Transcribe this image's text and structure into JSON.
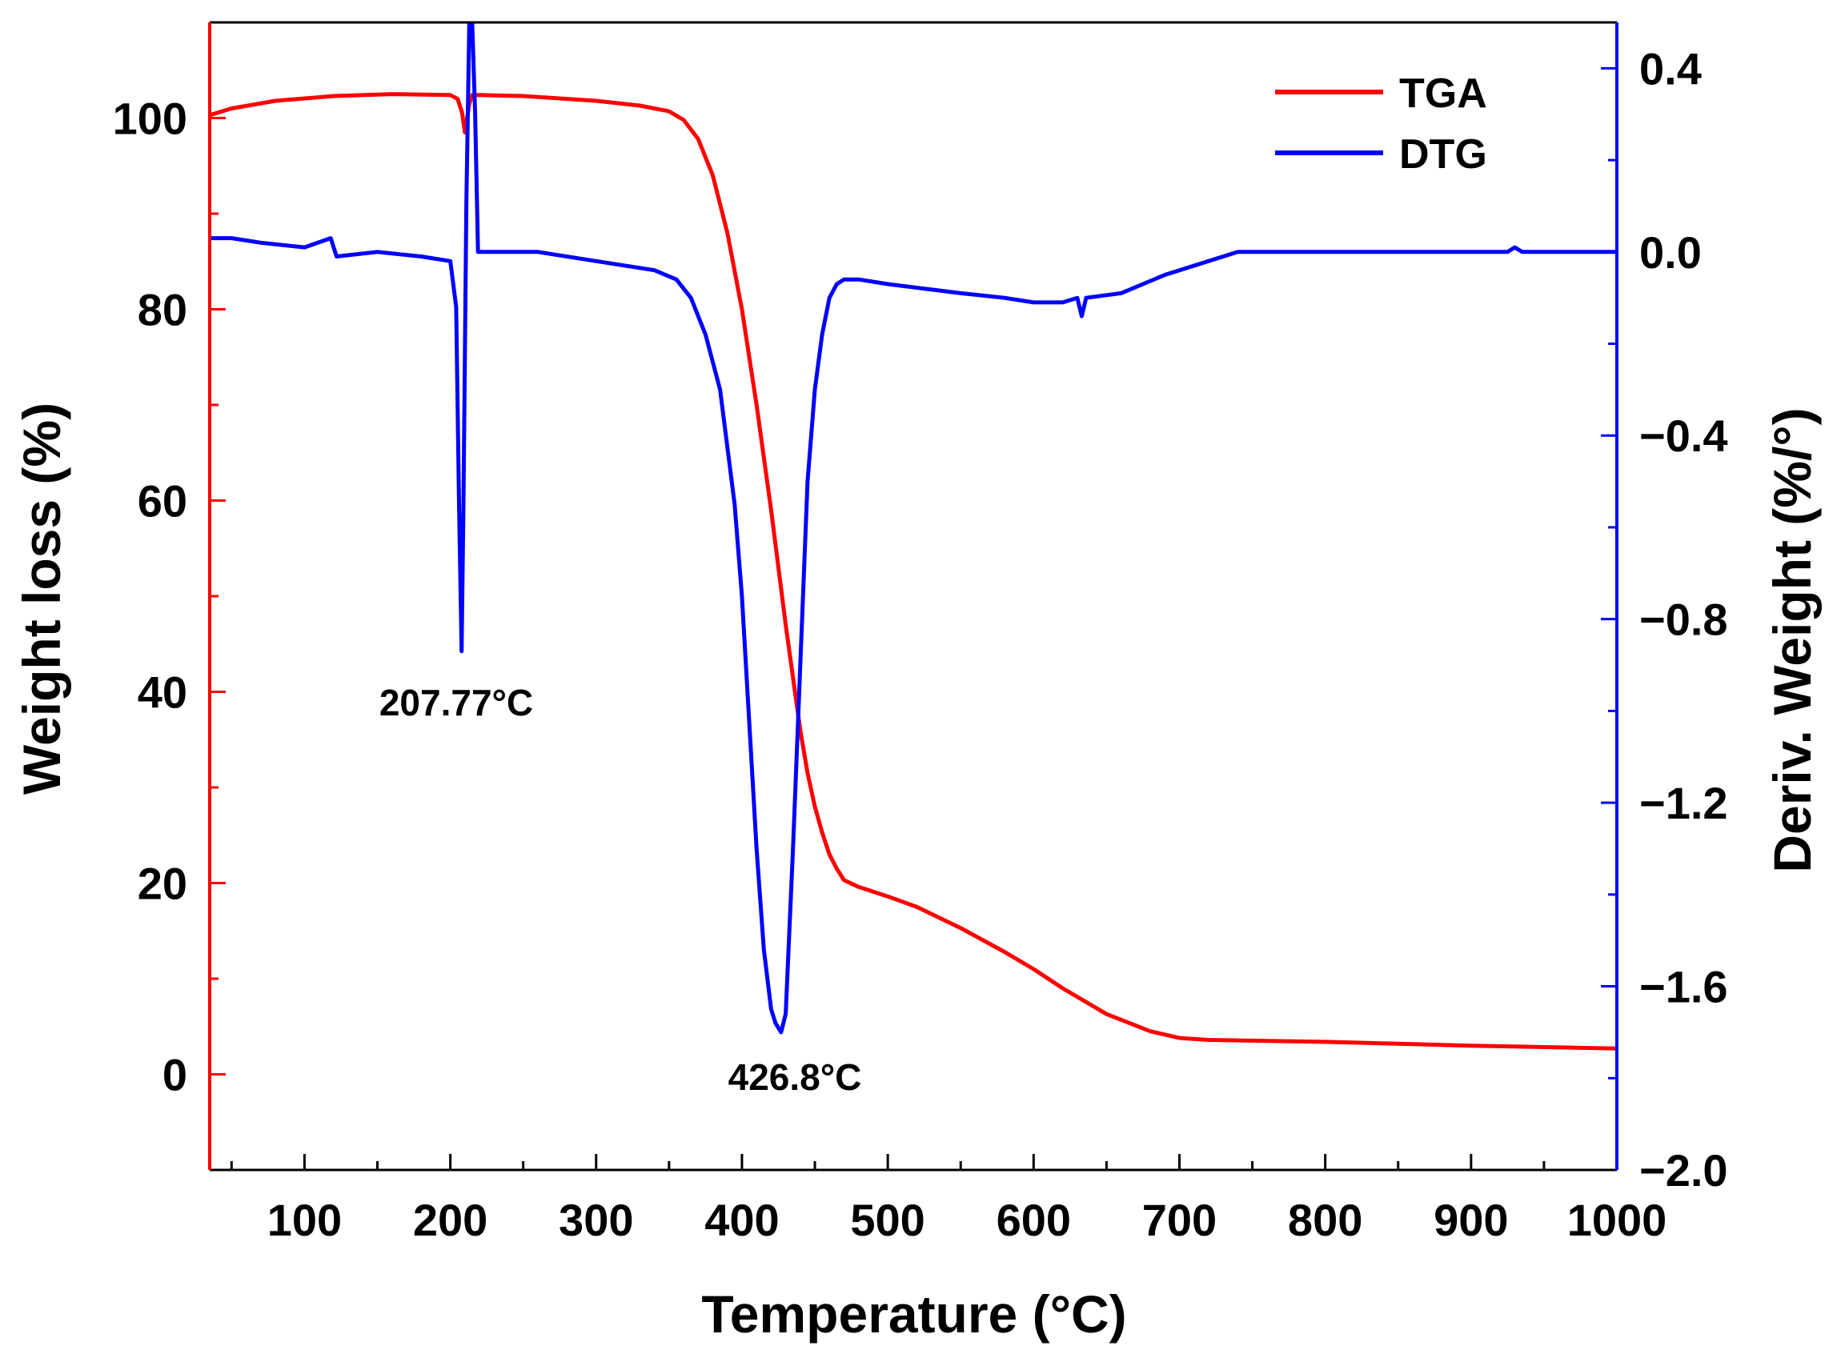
{
  "chart_data": {
    "type": "line",
    "xlabel": "Temperature (°C)",
    "ylabel_left": "Weight loss (%)",
    "ylabel_right": "Deriv. Weight (%/°)",
    "xlim": [
      35,
      1000
    ],
    "ylim_left": [
      -10,
      110
    ],
    "ylim_right": [
      -2.0,
      0.5
    ],
    "x_ticks": [
      100,
      200,
      300,
      400,
      500,
      600,
      700,
      800,
      900,
      1000
    ],
    "y_left_ticks": [
      0,
      20,
      40,
      60,
      80,
      100
    ],
    "y_right_ticks": [
      -2.0,
      -1.6,
      -1.2,
      -0.8,
      -0.4,
      0.0,
      0.4
    ],
    "y_right_tick_labels": [
      "−2.0",
      "−1.6",
      "−1.2",
      "−0.8",
      "−0.4",
      "0.0",
      "0.4"
    ],
    "legend_position": "top-right",
    "colors": {
      "left_axis": "#ff0000",
      "right_axis": "#0000ff",
      "frame": "#000000"
    },
    "series": [
      {
        "name": "TGA",
        "axis": "left",
        "color": "#ff0000",
        "x": [
          35,
          50,
          80,
          120,
          160,
          200,
          205,
          208,
          210,
          213,
          215,
          220,
          250,
          300,
          330,
          350,
          360,
          370,
          380,
          390,
          400,
          410,
          420,
          430,
          440,
          445,
          450,
          455,
          460,
          465,
          470,
          480,
          500,
          520,
          550,
          580,
          600,
          620,
          650,
          680,
          700,
          720,
          800,
          900,
          1000
        ],
        "values": [
          100.3,
          101.0,
          101.8,
          102.3,
          102.5,
          102.4,
          102.0,
          100.6,
          98.5,
          101.5,
          102.4,
          102.4,
          102.3,
          101.8,
          101.3,
          100.7,
          99.8,
          97.8,
          94.0,
          88.0,
          80.0,
          70.0,
          59.0,
          47.0,
          36.0,
          31.5,
          28.0,
          25.3,
          23.0,
          21.5,
          20.3,
          19.6,
          18.6,
          17.5,
          15.3,
          12.8,
          11.0,
          9.0,
          6.3,
          4.5,
          3.8,
          3.6,
          3.4,
          3.0,
          2.7
        ]
      },
      {
        "name": "DTG",
        "axis": "right",
        "color": "#0000ff",
        "x": [
          35,
          50,
          70,
          100,
          118,
          122,
          150,
          180,
          200,
          204,
          206,
          207.77,
          209,
          211,
          213,
          215,
          217,
          219,
          221,
          230,
          260,
          300,
          340,
          355,
          365,
          375,
          385,
          395,
          400,
          410,
          415,
          420,
          423,
          426.8,
          430,
          435,
          440,
          445,
          450,
          455,
          460,
          465,
          470,
          480,
          500,
          550,
          580,
          600,
          620,
          630,
          633,
          636,
          660,
          690,
          710,
          740,
          800,
          900,
          925,
          930,
          935,
          1000
        ],
        "values": [
          0.03,
          0.03,
          0.02,
          0.01,
          0.03,
          -0.01,
          0.0,
          -0.01,
          -0.02,
          -0.12,
          -0.55,
          -0.87,
          -0.55,
          0.1,
          0.5,
          0.5,
          0.3,
          0.0,
          0.0,
          0.0,
          0.0,
          -0.02,
          -0.04,
          -0.06,
          -0.1,
          -0.18,
          -0.3,
          -0.55,
          -0.75,
          -1.3,
          -1.52,
          -1.65,
          -1.68,
          -1.7,
          -1.66,
          -1.3,
          -0.9,
          -0.5,
          -0.3,
          -0.18,
          -0.1,
          -0.07,
          -0.06,
          -0.06,
          -0.07,
          -0.09,
          -0.1,
          -0.11,
          -0.11,
          -0.1,
          -0.14,
          -0.1,
          -0.09,
          -0.05,
          -0.03,
          0.0,
          0.0,
          0.0,
          0.0,
          0.01,
          0.0,
          0.0
        ]
      }
    ],
    "annotations": [
      {
        "text": "207.77°C",
        "x": 207.77,
        "y": -0.98,
        "axis": "right"
      },
      {
        "text": "426.8°C",
        "x": 426.8,
        "y": -1.79,
        "axis": "right"
      }
    ]
  }
}
